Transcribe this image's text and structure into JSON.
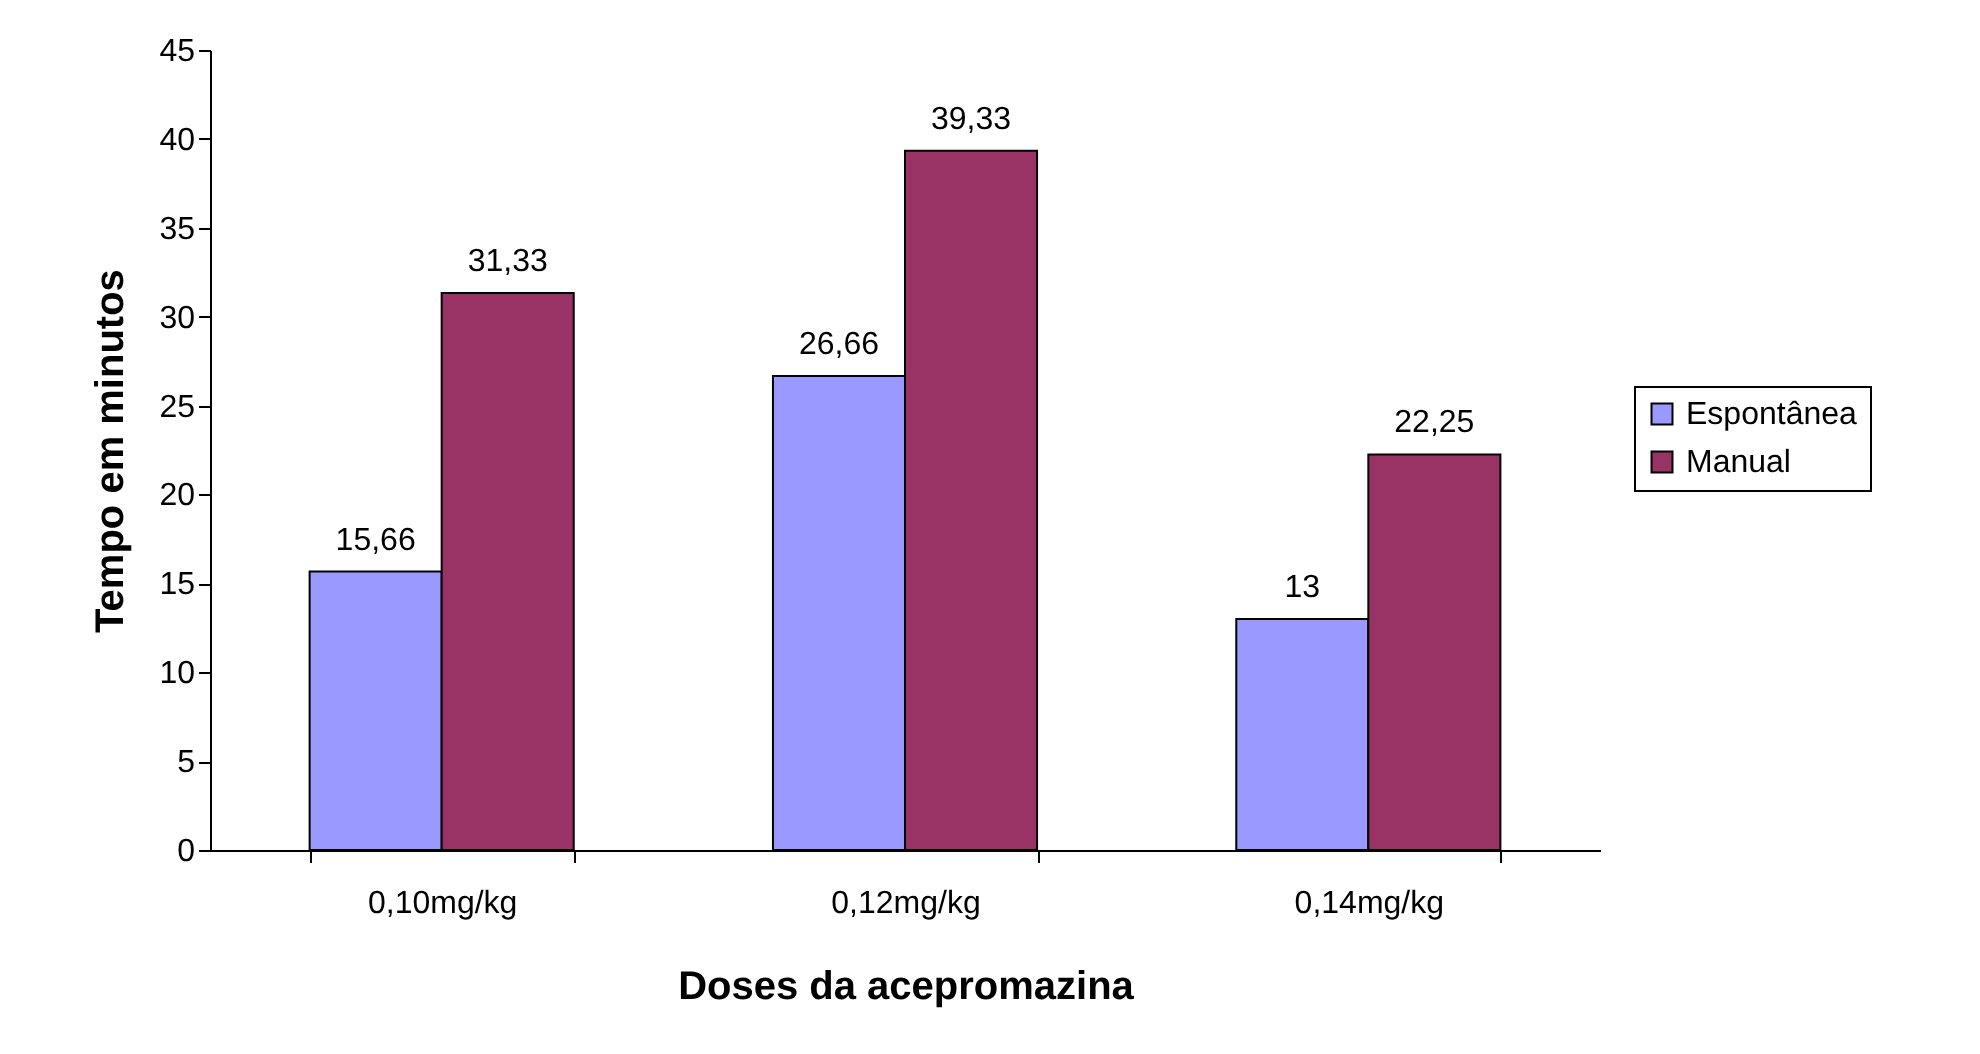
{
  "chart_data": {
    "type": "bar",
    "xlabel": "Doses da acepromazina",
    "ylabel": "Tempo em minutos",
    "categories": [
      "0,10mg/kg",
      "0,12mg/kg",
      "0,14mg/kg"
    ],
    "series": [
      {
        "name": "Espontânea",
        "color": "#9999ff",
        "values": [
          15.66,
          26.66,
          13
        ],
        "value_labels": [
          "15,66",
          "26,66",
          "13"
        ]
      },
      {
        "name": "Manual",
        "color": "#993366",
        "values": [
          31.33,
          39.33,
          22.25
        ],
        "value_labels": [
          "31,33",
          "39,33",
          "22,25"
        ]
      }
    ],
    "ylim": [
      0,
      45
    ],
    "yticks": [
      0,
      5,
      10,
      15,
      20,
      25,
      30,
      35,
      40,
      45
    ],
    "legend": "right"
  }
}
